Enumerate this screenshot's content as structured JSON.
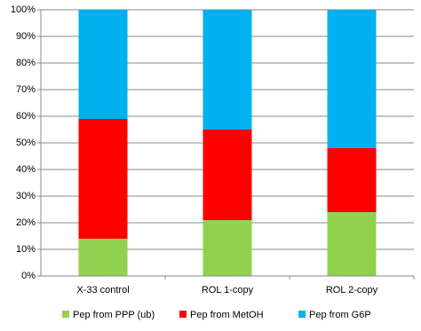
{
  "chart_data": {
    "type": "stacked-bar",
    "categories": [
      "X-33 control",
      "ROL 1-copy",
      "ROL 2-copy"
    ],
    "series": [
      {
        "name": "Pep from PPP (ub)",
        "color": "#92d050",
        "values": [
          14,
          21,
          24
        ]
      },
      {
        "name": "Pep from MetOH",
        "color": "#ff0000",
        "values": [
          45,
          34,
          24
        ]
      },
      {
        "name": "Pep from G6P",
        "color": "#00b0f0",
        "values": [
          41,
          45,
          52
        ]
      }
    ],
    "ylim": [
      0,
      100
    ],
    "yticks": [
      {
        "value": 0,
        "label": "0%"
      },
      {
        "value": 10,
        "label": "10%"
      },
      {
        "value": 20,
        "label": "20%"
      },
      {
        "value": 30,
        "label": "30%"
      },
      {
        "value": 40,
        "label": "40%"
      },
      {
        "value": 50,
        "label": "50%"
      },
      {
        "value": 60,
        "label": "60%"
      },
      {
        "value": 70,
        "label": "70%"
      },
      {
        "value": 80,
        "label": "80%"
      },
      {
        "value": 90,
        "label": "90%"
      },
      {
        "value": 100,
        "label": "100%"
      }
    ],
    "grid": true
  }
}
